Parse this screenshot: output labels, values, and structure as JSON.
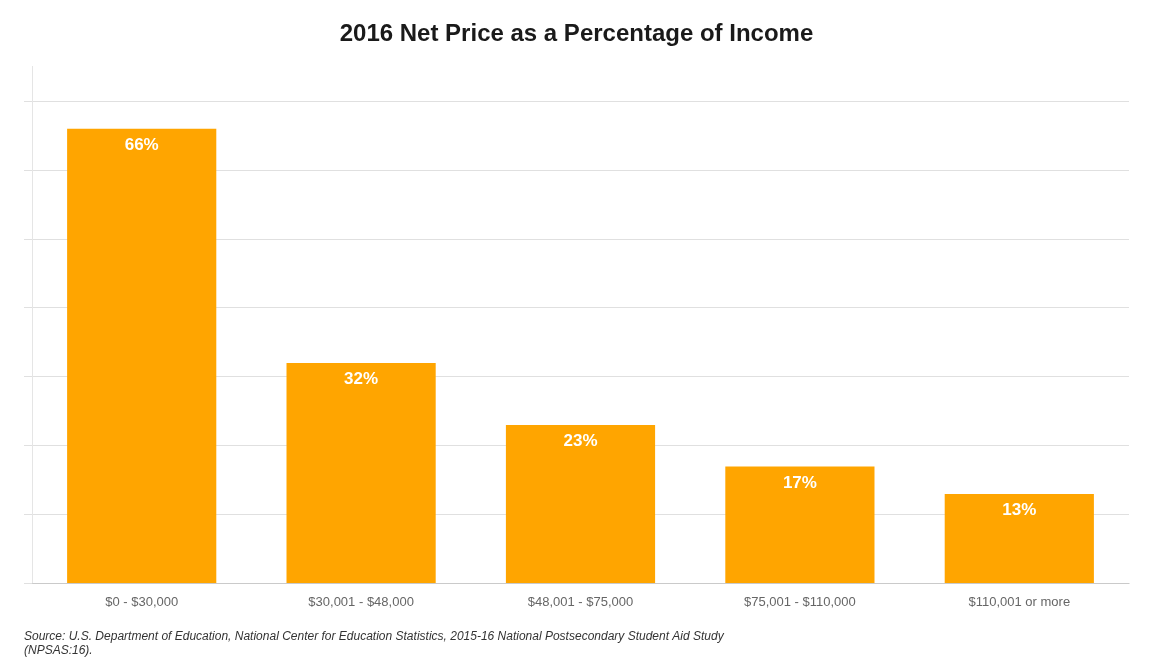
{
  "chart_data": {
    "type": "bar",
    "title": "2016 Net Price as a Percentage of Income",
    "categories": [
      "$0 - $30,000",
      "$30,001 - $48,000",
      "$48,001 - $75,000",
      "$75,001 - $110,000",
      "$110,001 or more"
    ],
    "values": [
      66,
      32,
      23,
      17,
      13
    ],
    "value_labels": [
      "66%",
      "32%",
      "23%",
      "17%",
      "13%"
    ],
    "data_labels": true,
    "color": "#FFA500",
    "ylim": [
      0,
      75
    ],
    "yticks": [
      0,
      10,
      20,
      30,
      40,
      50,
      60,
      70
    ],
    "grid": true,
    "tick_labels": "x",
    "annotations": [
      "Source: U.S. Department of Education, National Center for Education Statistics, 2015-16 National Postsecondary Student Aid Study\n(NPSAS:16)."
    ]
  }
}
